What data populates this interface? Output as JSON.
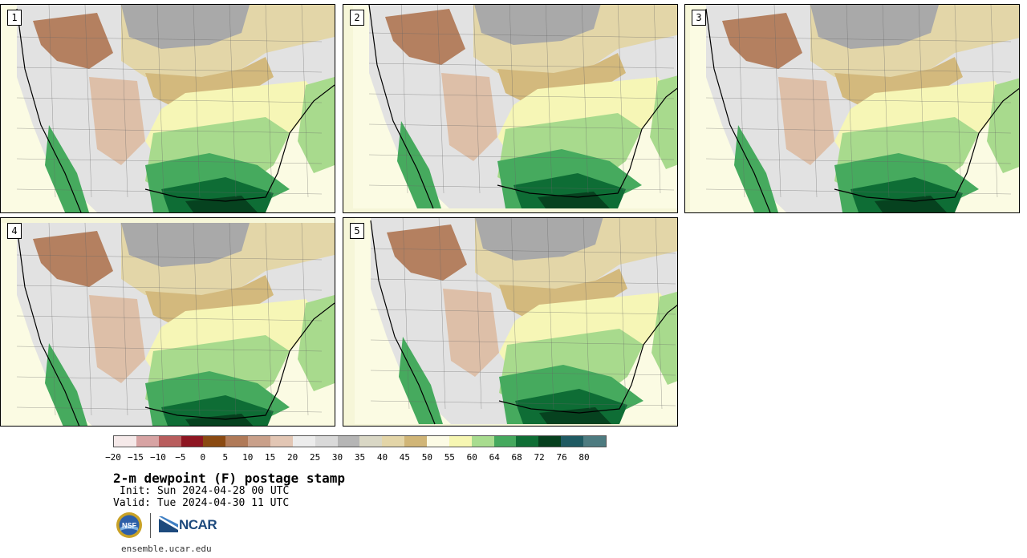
{
  "panels": [
    {
      "label": "1",
      "variant": 0
    },
    {
      "label": "2",
      "variant": 1
    },
    {
      "label": "3",
      "variant": 2
    },
    {
      "label": "4",
      "variant": 3
    },
    {
      "label": "5",
      "variant": 4
    }
  ],
  "colorbar": {
    "colors": [
      "#f5e9e9",
      "#d7a3a3",
      "#b85d5d",
      "#8e1622",
      "#8a4a12",
      "#b07a58",
      "#c9a08a",
      "#e2c6b4",
      "#ececec",
      "#d9d9d9",
      "#b5b5b5",
      "#d9d7c5",
      "#e3d5a8",
      "#d0b577",
      "#fcfbe5",
      "#f6f6b2",
      "#a8dc8f",
      "#45a95e",
      "#0f6e35",
      "#06401e",
      "#1f5a62",
      "#4d7b80"
    ],
    "tick_labels": [
      "−20",
      "−15",
      "−10",
      "−5",
      "0",
      "5",
      "10",
      "15",
      "20",
      "25",
      "30",
      "35",
      "40",
      "45",
      "50",
      "55",
      "60",
      "64",
      "68",
      "72",
      "76",
      "80"
    ]
  },
  "title": "2-m dewpoint (F) postage stamp",
  "init": "Init: Sun 2024-04-28 00 UTC",
  "valid": "Valid: Tue 2024-04-30 11 UTC",
  "logos": {
    "nsf": "NSF",
    "ncar": "NCAR"
  },
  "site": "ensemble.ucar.edu"
}
